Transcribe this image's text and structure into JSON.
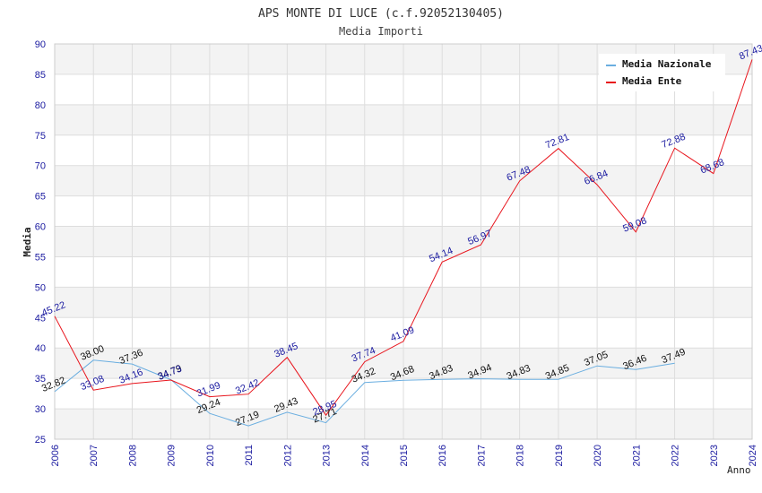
{
  "chart_data": {
    "type": "line",
    "title": "APS MONTE DI LUCE (c.f.92052130405)",
    "subtitle": "Media Importi",
    "xlabel": "Anno",
    "ylabel": "Media",
    "ylim": [
      25,
      90
    ],
    "yticks": [
      "25",
      "30",
      "35",
      "40",
      "45",
      "50",
      "55",
      "60",
      "65",
      "70",
      "75",
      "80",
      "85",
      "90"
    ],
    "categories": [
      "2006",
      "2007",
      "2008",
      "2009",
      "2010",
      "2011",
      "2012",
      "2013",
      "2014",
      "2015",
      "2016",
      "2017",
      "2018",
      "2019",
      "2020",
      "2021",
      "2022",
      "2023",
      "2024"
    ],
    "grid": true,
    "legend_position": "top-right",
    "series": [
      {
        "name": "Media Nazionale",
        "color": "#6aaee0",
        "values": [
          32.82,
          38.0,
          37.36,
          34.79,
          29.24,
          27.19,
          29.43,
          27.71,
          34.32,
          34.68,
          34.83,
          34.94,
          34.83,
          34.85,
          37.05,
          36.46,
          37.49,
          null,
          null
        ],
        "labels": [
          "32.82",
          "38.00",
          "37.36",
          "34.79",
          "29.24",
          "27.19",
          "29.43",
          "27.71",
          "34.32",
          "34.68",
          "34.83",
          "34.94",
          "34.83",
          "34.85",
          "37.05",
          "36.46",
          "37.49",
          "",
          ""
        ]
      },
      {
        "name": "Media Ente",
        "color": "#e8141c",
        "values": [
          45.22,
          33.08,
          34.16,
          34.73,
          31.99,
          32.42,
          38.45,
          28.95,
          37.74,
          41.09,
          54.14,
          56.97,
          67.48,
          72.81,
          66.84,
          59.08,
          72.88,
          68.68,
          87.43
        ],
        "labels": [
          "45.22",
          "33.08",
          "34.16",
          "34.73",
          "31.99",
          "32.42",
          "38.45",
          "28.95",
          "37.74",
          "41.09",
          "54.14",
          "56.97",
          "67.48",
          "72.81",
          "66.84",
          "59.08",
          "72.88",
          "68.68",
          "87.43"
        ]
      }
    ]
  }
}
